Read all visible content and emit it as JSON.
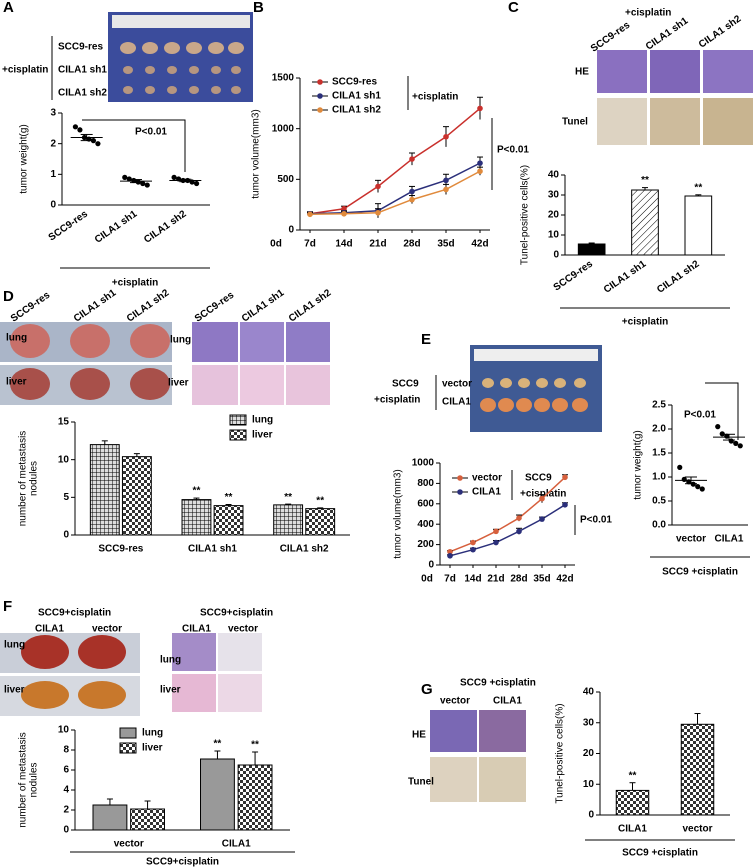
{
  "letters": [
    "A",
    "B",
    "C",
    "D",
    "E",
    "F",
    "G"
  ],
  "photo_text": {
    "A": [
      "+cisplatin",
      "SCC9-res",
      "CILA1 sh1",
      "CILA1 sh2"
    ],
    "C": [
      "+cisplatin",
      "SCC9-res",
      "CILA1 sh1",
      "CILA1 sh2",
      "HE",
      "Tunel"
    ],
    "D": [
      "SCC9-res",
      "CILA1 sh1",
      "CILA1 sh2",
      "lung",
      "liver",
      "SCC9-res",
      "CILA1 sh1",
      "CILA1 sh2",
      "lung",
      "liver"
    ],
    "E": [
      "SCC9",
      "+cisplatin",
      "vector",
      "CILA1"
    ],
    "F": [
      "SCC9+cisplatin",
      "CILA1",
      "vector",
      "lung",
      "liver",
      "SCC9+cisplatin",
      "CILA1",
      "vector",
      "lung",
      "liver"
    ],
    "G": [
      "SCC9 +cisplatin",
      "vector",
      "CILA1",
      "HE",
      "Tunel"
    ]
  },
  "chart_data": [
    {
      "type": "dot",
      "ylabel": "tumor weight(g)",
      "categories": [
        "SCC9-res",
        "CILA1 sh1",
        "CILA1 sh2"
      ],
      "values": [
        [
          2.55,
          2.45,
          2.2,
          2.15,
          2.1,
          2.0
        ],
        [
          0.9,
          0.85,
          0.8,
          0.75,
          0.7,
          0.65
        ],
        [
          0.9,
          0.85,
          0.8,
          0.8,
          0.75,
          0.7
        ]
      ],
      "means": [
        2.2,
        0.78,
        0.8
      ],
      "errors": [
        0.1,
        0.05,
        0.04
      ],
      "color": "#000000",
      "mean_color": "#d7191c",
      "ylim": [
        0,
        3
      ],
      "yticks": [
        0,
        1,
        2,
        3
      ],
      "annotations": [
        "P<0.01"
      ],
      "group_label": "+cisplatin"
    },
    {
      "type": "line",
      "ylabel": "tumor volume(mm3)",
      "categories": [
        "0d",
        "7d",
        "14d",
        "21d",
        "28d",
        "35d",
        "42d"
      ],
      "series": [
        {
          "name": "SCC9-res",
          "color": "#c9302c",
          "values": [
            null,
            160,
            210,
            430,
            700,
            920,
            1200
          ],
          "errors": [
            null,
            20,
            25,
            60,
            60,
            100,
            110
          ]
        },
        {
          "name": "CILA1 sh1",
          "color": "#2b2f7a",
          "values": [
            null,
            160,
            170,
            190,
            380,
            490,
            660
          ],
          "errors": [
            null,
            15,
            20,
            70,
            50,
            60,
            60
          ]
        },
        {
          "name": "CILA1 sh2",
          "color": "#e08a3c",
          "values": [
            null,
            155,
            160,
            170,
            300,
            400,
            580
          ],
          "errors": [
            null,
            15,
            20,
            40,
            40,
            50,
            40
          ]
        }
      ],
      "ylim": [
        0,
        1500
      ],
      "yticks": [
        0,
        500,
        1000,
        1500
      ],
      "annotations": [
        "+cisplatin",
        "P<0.01"
      ]
    },
    {
      "type": "bar",
      "ylabel": "Tunel-positive cells(%)",
      "categories": [
        "SCC9-res",
        "CILA1 sh1",
        "CILA1 sh2"
      ],
      "values": [
        5.5,
        32.5,
        29.5
      ],
      "errors": [
        0.5,
        1.2,
        0.6
      ],
      "fills": [
        "solid",
        "hatch",
        "open"
      ],
      "color": "#000000",
      "significance": [
        null,
        "**",
        "**"
      ],
      "ylim": [
        0,
        40
      ],
      "yticks": [
        0,
        10,
        20,
        30,
        40
      ],
      "group_label": "+cisplatin"
    },
    {
      "type": "grouped_bar",
      "ylabel": [
        "number of metastasis",
        "nodules"
      ],
      "categories": [
        "SCC9-res",
        "CILA1 sh1",
        "CILA1 sh2"
      ],
      "series": [
        {
          "name": "lung",
          "pattern": "grid",
          "values": [
            12,
            4.7,
            4.0
          ],
          "errors": [
            0.5,
            0.2,
            0.1
          ],
          "significance": [
            null,
            "**",
            "**"
          ]
        },
        {
          "name": "liver",
          "pattern": "check",
          "values": [
            10.4,
            3.9,
            3.5
          ],
          "errors": [
            0.4,
            0.15,
            0.1
          ],
          "significance": [
            null,
            "**",
            "**"
          ]
        }
      ],
      "ylim": [
        0,
        15
      ],
      "yticks": [
        0,
        5,
        10,
        15
      ]
    },
    {
      "type": "line",
      "ylabel": "tumor volume(mm3)",
      "categories": [
        "0d",
        "7d",
        "14d",
        "21d",
        "28d",
        "35d",
        "42d"
      ],
      "series": [
        {
          "name": "vector",
          "color": "#d65f3c",
          "values": [
            null,
            130,
            220,
            330,
            460,
            650,
            860
          ],
          "errors": [
            null,
            10,
            15,
            20,
            30,
            40,
            25
          ]
        },
        {
          "name": "CILA1",
          "color": "#2b2f7a",
          "values": [
            null,
            90,
            150,
            220,
            330,
            450,
            590
          ],
          "errors": [
            null,
            10,
            15,
            20,
            30,
            20,
            20
          ]
        }
      ],
      "ylim": [
        0,
        1000
      ],
      "yticks": [
        0,
        200,
        400,
        600,
        800,
        1000
      ],
      "annotations": [
        "SCC9",
        "+cisplatin",
        "P<0.01"
      ]
    },
    {
      "type": "dot",
      "ylabel": "tumor weight(g)",
      "categories": [
        "vector",
        "CILA1"
      ],
      "values": [
        [
          1.2,
          0.95,
          0.9,
          0.85,
          0.8,
          0.75
        ],
        [
          2.05,
          1.9,
          1.85,
          1.75,
          1.7,
          1.65
        ]
      ],
      "means": [
        0.93,
        1.83
      ],
      "errors": [
        0.07,
        0.06
      ],
      "color": "#000000",
      "mean_color": "#d7191c",
      "ylim": [
        0,
        2.5
      ],
      "yticks": [
        {
          "value": 0,
          "label": "0.0"
        },
        0.5,
        {
          "value": 1,
          "label": "1.0"
        },
        1.5,
        {
          "value": 2,
          "label": "2.0"
        },
        2.5
      ],
      "annotations": [
        "P<0.01"
      ],
      "group_label": "SCC9 +cisplatin"
    },
    {
      "type": "grouped_bar",
      "ylabel": [
        "number of metastasis",
        "nodules"
      ],
      "categories": [
        "vector",
        "CILA1"
      ],
      "series": [
        {
          "name": "lung",
          "pattern": "gray",
          "values": [
            2.5,
            7.1
          ],
          "errors": [
            0.6,
            0.8
          ],
          "significance": [
            null,
            "**"
          ]
        },
        {
          "name": "liver",
          "pattern": "check",
          "values": [
            2.1,
            6.5
          ],
          "errors": [
            0.8,
            1.3
          ],
          "significance": [
            null,
            "**"
          ]
        }
      ],
      "ylim": [
        0,
        10
      ],
      "yticks": [
        0,
        2,
        4,
        6,
        8,
        10
      ],
      "group_label": "SCC9+cisplatin"
    },
    {
      "type": "bar",
      "ylabel": "Tunel-positive cells(%)",
      "categories": [
        "CILA1",
        "vector"
      ],
      "values": [
        8,
        29.5
      ],
      "errors": [
        2.5,
        3.5
      ],
      "fills": [
        "check",
        "check"
      ],
      "color": "#000000",
      "significance": [
        "**",
        null
      ],
      "ylim": [
        0,
        40
      ],
      "yticks": [
        0,
        10,
        20,
        30,
        40
      ],
      "group_label": "SCC9 +cisplatin"
    }
  ]
}
